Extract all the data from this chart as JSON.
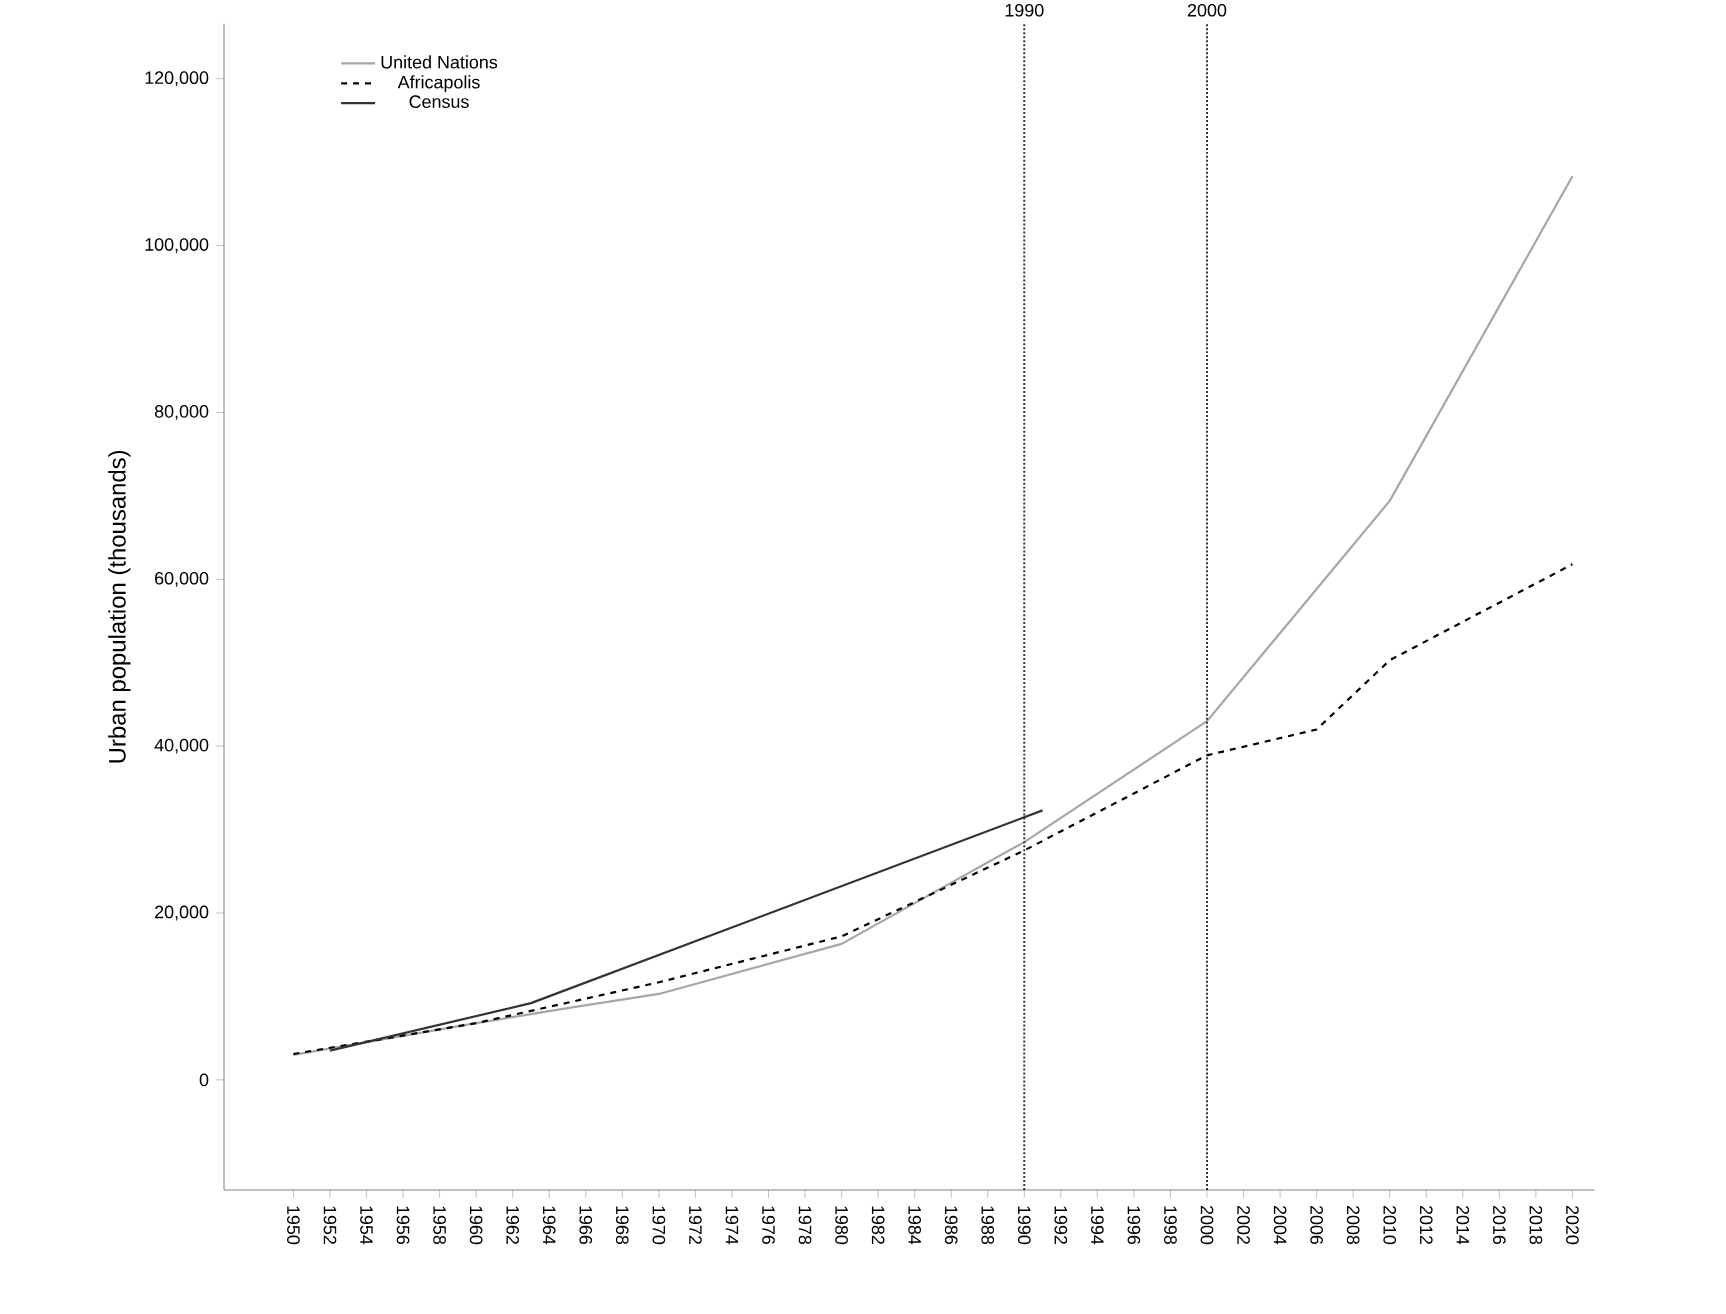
{
  "chart_data": {
    "type": "line",
    "ylabel": "Urban population (thousands)",
    "xlim": [
      1946.2,
      2021.2
    ],
    "ylim": [
      -13200,
      126600
    ],
    "xticks": [
      1950,
      1952,
      1954,
      1956,
      1958,
      1960,
      1962,
      1964,
      1966,
      1968,
      1970,
      1972,
      1974,
      1976,
      1978,
      1980,
      1982,
      1984,
      1986,
      1988,
      1990,
      1992,
      1994,
      1996,
      1998,
      2000,
      2002,
      2004,
      2006,
      2008,
      2010,
      2012,
      2014,
      2016,
      2018,
      2020
    ],
    "yticks": [
      {
        "value": 0,
        "label": "0"
      },
      {
        "value": 20000,
        "label": "20,000"
      },
      {
        "value": 40000,
        "label": "40,000"
      },
      {
        "value": 60000,
        "label": "60,000"
      },
      {
        "value": 80000,
        "label": "80,000"
      },
      {
        "value": 100000,
        "label": "100,000"
      },
      {
        "value": 120000,
        "label": "120,000"
      }
    ],
    "legend": "top left",
    "grid": false,
    "marker": "none",
    "series": [
      {
        "name": "United Nations",
        "color": "#a6a6a6",
        "line_style": "solid",
        "x": [
          1950,
          1960,
          1965,
          1970,
          1980,
          1990,
          2000,
          2010,
          2020
        ],
        "values": [
          3000,
          6800,
          8600,
          10300,
          16300,
          28500,
          43000,
          69400,
          108300
        ]
      },
      {
        "name": "Africapolis",
        "color": "#000000",
        "line_style": "dashed",
        "x": [
          1950,
          1960,
          1970,
          1980,
          1990,
          2000,
          2006,
          2010,
          2020
        ],
        "values": [
          3100,
          6800,
          11700,
          17200,
          27500,
          38900,
          42000,
          50300,
          61800
        ]
      },
      {
        "name": "Census",
        "color": "#333333",
        "line_style": "solid",
        "x": [
          1952,
          1963,
          1991
        ],
        "values": [
          3500,
          9200,
          32300
        ]
      }
    ],
    "ref_lines": [
      {
        "axis": "x",
        "value": 1990,
        "label": "1990",
        "line_style": "dotted"
      },
      {
        "axis": "x",
        "value": 2000,
        "label": "2000",
        "line_style": "dotted"
      }
    ]
  }
}
